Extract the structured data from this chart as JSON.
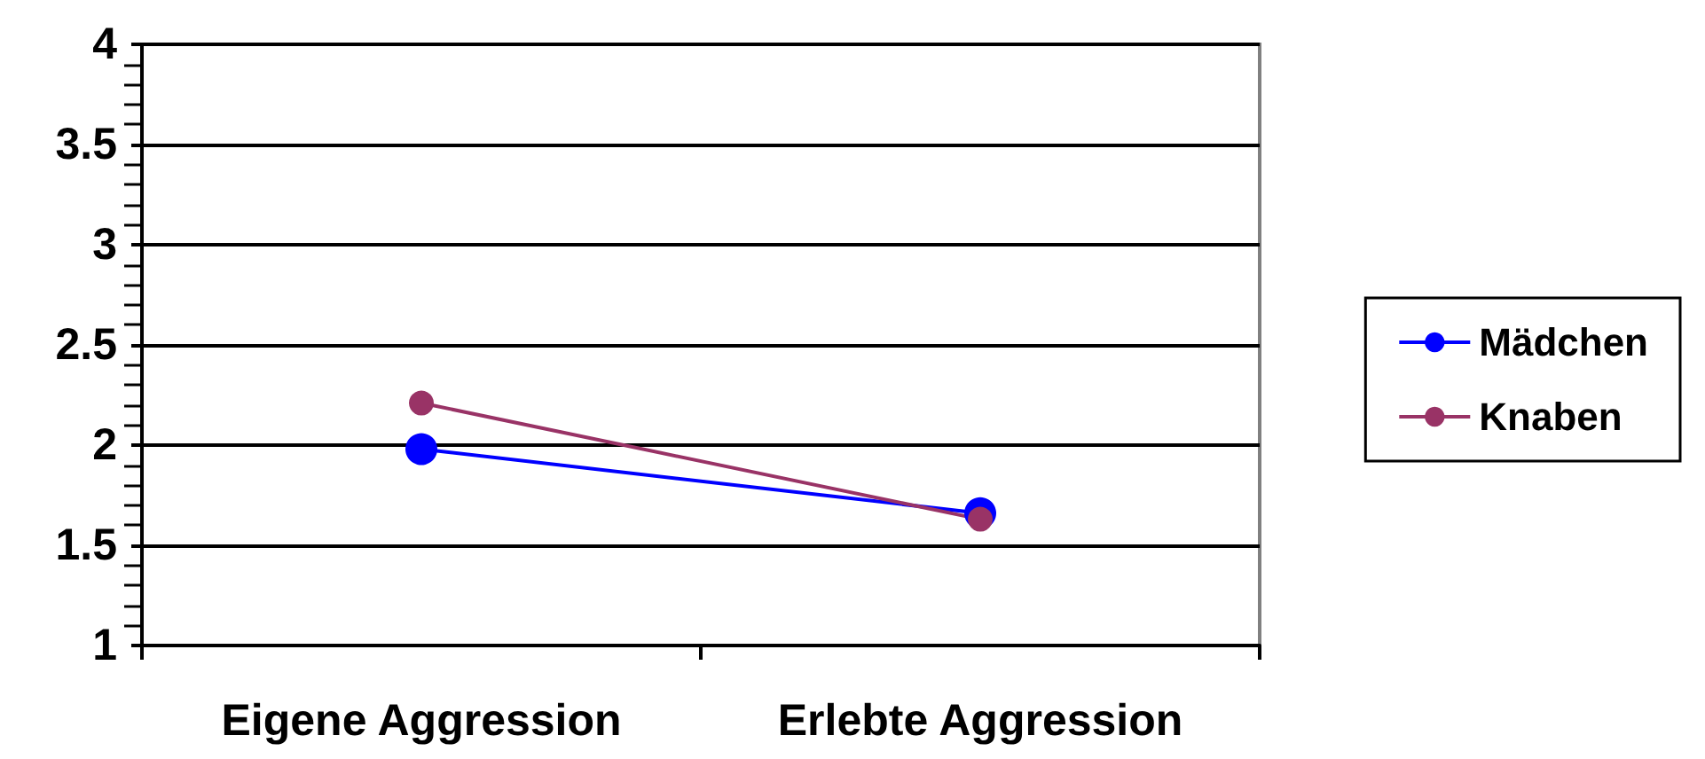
{
  "chart_data": {
    "type": "line",
    "categories": [
      "Eigene Aggression",
      "Erlebte Aggression"
    ],
    "series": [
      {
        "name": "Mädchen",
        "color": "#0000ff",
        "values": [
          1.98,
          1.66
        ]
      },
      {
        "name": "Knaben",
        "color": "#993366",
        "values": [
          2.21,
          1.63
        ]
      }
    ],
    "ylim": [
      1,
      4
    ],
    "yticks": [
      1,
      1.5,
      2,
      2.5,
      3,
      3.5,
      4
    ],
    "grid": "y",
    "legend": "right",
    "marker": "circle",
    "line_style": "solid"
  }
}
